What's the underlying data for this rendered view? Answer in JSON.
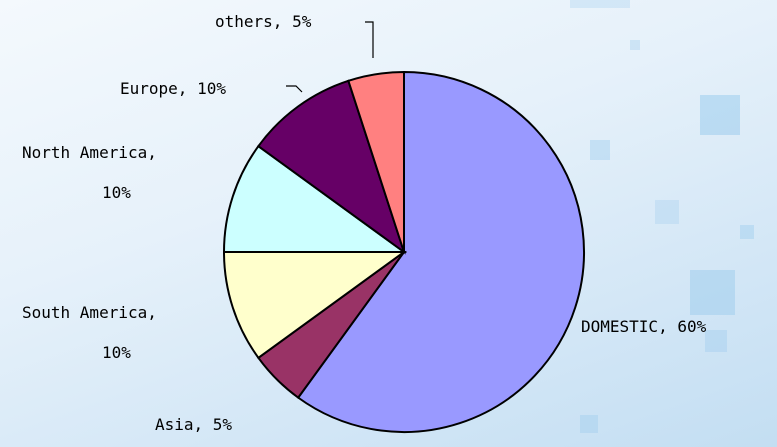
{
  "chart_data": {
    "type": "pie",
    "title": "",
    "slices": [
      {
        "label": "DOMESTIC",
        "value": 60,
        "display": "DOMESTIC, 60%",
        "color": "#9999ff"
      },
      {
        "label": "Asia",
        "value": 5,
        "display": "Asia, 5%",
        "color": "#993366"
      },
      {
        "label": "South America",
        "value": 10,
        "display": [
          "South America,",
          "10%"
        ],
        "color": "#ffffcc"
      },
      {
        "label": "North America",
        "value": 10,
        "display": [
          "North America,",
          "10%"
        ],
        "color": "#ccffff"
      },
      {
        "label": "Europe",
        "value": 10,
        "display": "Europe, 10%",
        "color": "#660066"
      },
      {
        "label": "others",
        "value": 5,
        "display": "others, 5%",
        "color": "#ff8080"
      }
    ],
    "start_angle": "12 o'clock",
    "direction": "clockwise",
    "legend": "none"
  }
}
